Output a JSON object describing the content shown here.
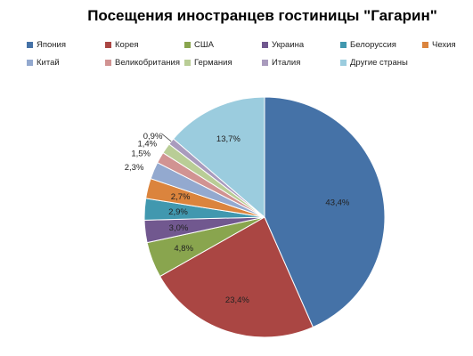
{
  "chart_data": {
    "type": "pie",
    "title": "Посещения иностранцев гостиницы \"Гагарин\"",
    "legend_position": "top",
    "slices": [
      {
        "label": "Япония",
        "value": 43.4,
        "value_label": "43,4%",
        "color": "#4572A7"
      },
      {
        "label": "Корея",
        "value": 23.4,
        "value_label": "23,4%",
        "color": "#AA4643"
      },
      {
        "label": "США",
        "value": 4.8,
        "value_label": "4,8%",
        "color": "#89A54E"
      },
      {
        "label": "Украина",
        "value": 3.0,
        "value_label": "3,0%",
        "color": "#71588F"
      },
      {
        "label": "Белоруссия",
        "value": 2.9,
        "value_label": "2,9%",
        "color": "#4198AF"
      },
      {
        "label": "Чехия",
        "value": 2.7,
        "value_label": "2,7%",
        "color": "#DB843D"
      },
      {
        "label": "Китай",
        "value": 2.3,
        "value_label": "2,3%",
        "color": "#93A9CF"
      },
      {
        "label": "Великобритания",
        "value": 1.5,
        "value_label": "1,5%",
        "color": "#D19392"
      },
      {
        "label": "Германия",
        "value": 1.4,
        "value_label": "1,4%",
        "color": "#B9CD96"
      },
      {
        "label": "Италия",
        "value": 0.9,
        "value_label": "0,9%",
        "color": "#A99BBD"
      },
      {
        "label": "Другие страны",
        "value": 13.7,
        "value_label": "13,7%",
        "color": "#9BCCDE"
      }
    ]
  }
}
